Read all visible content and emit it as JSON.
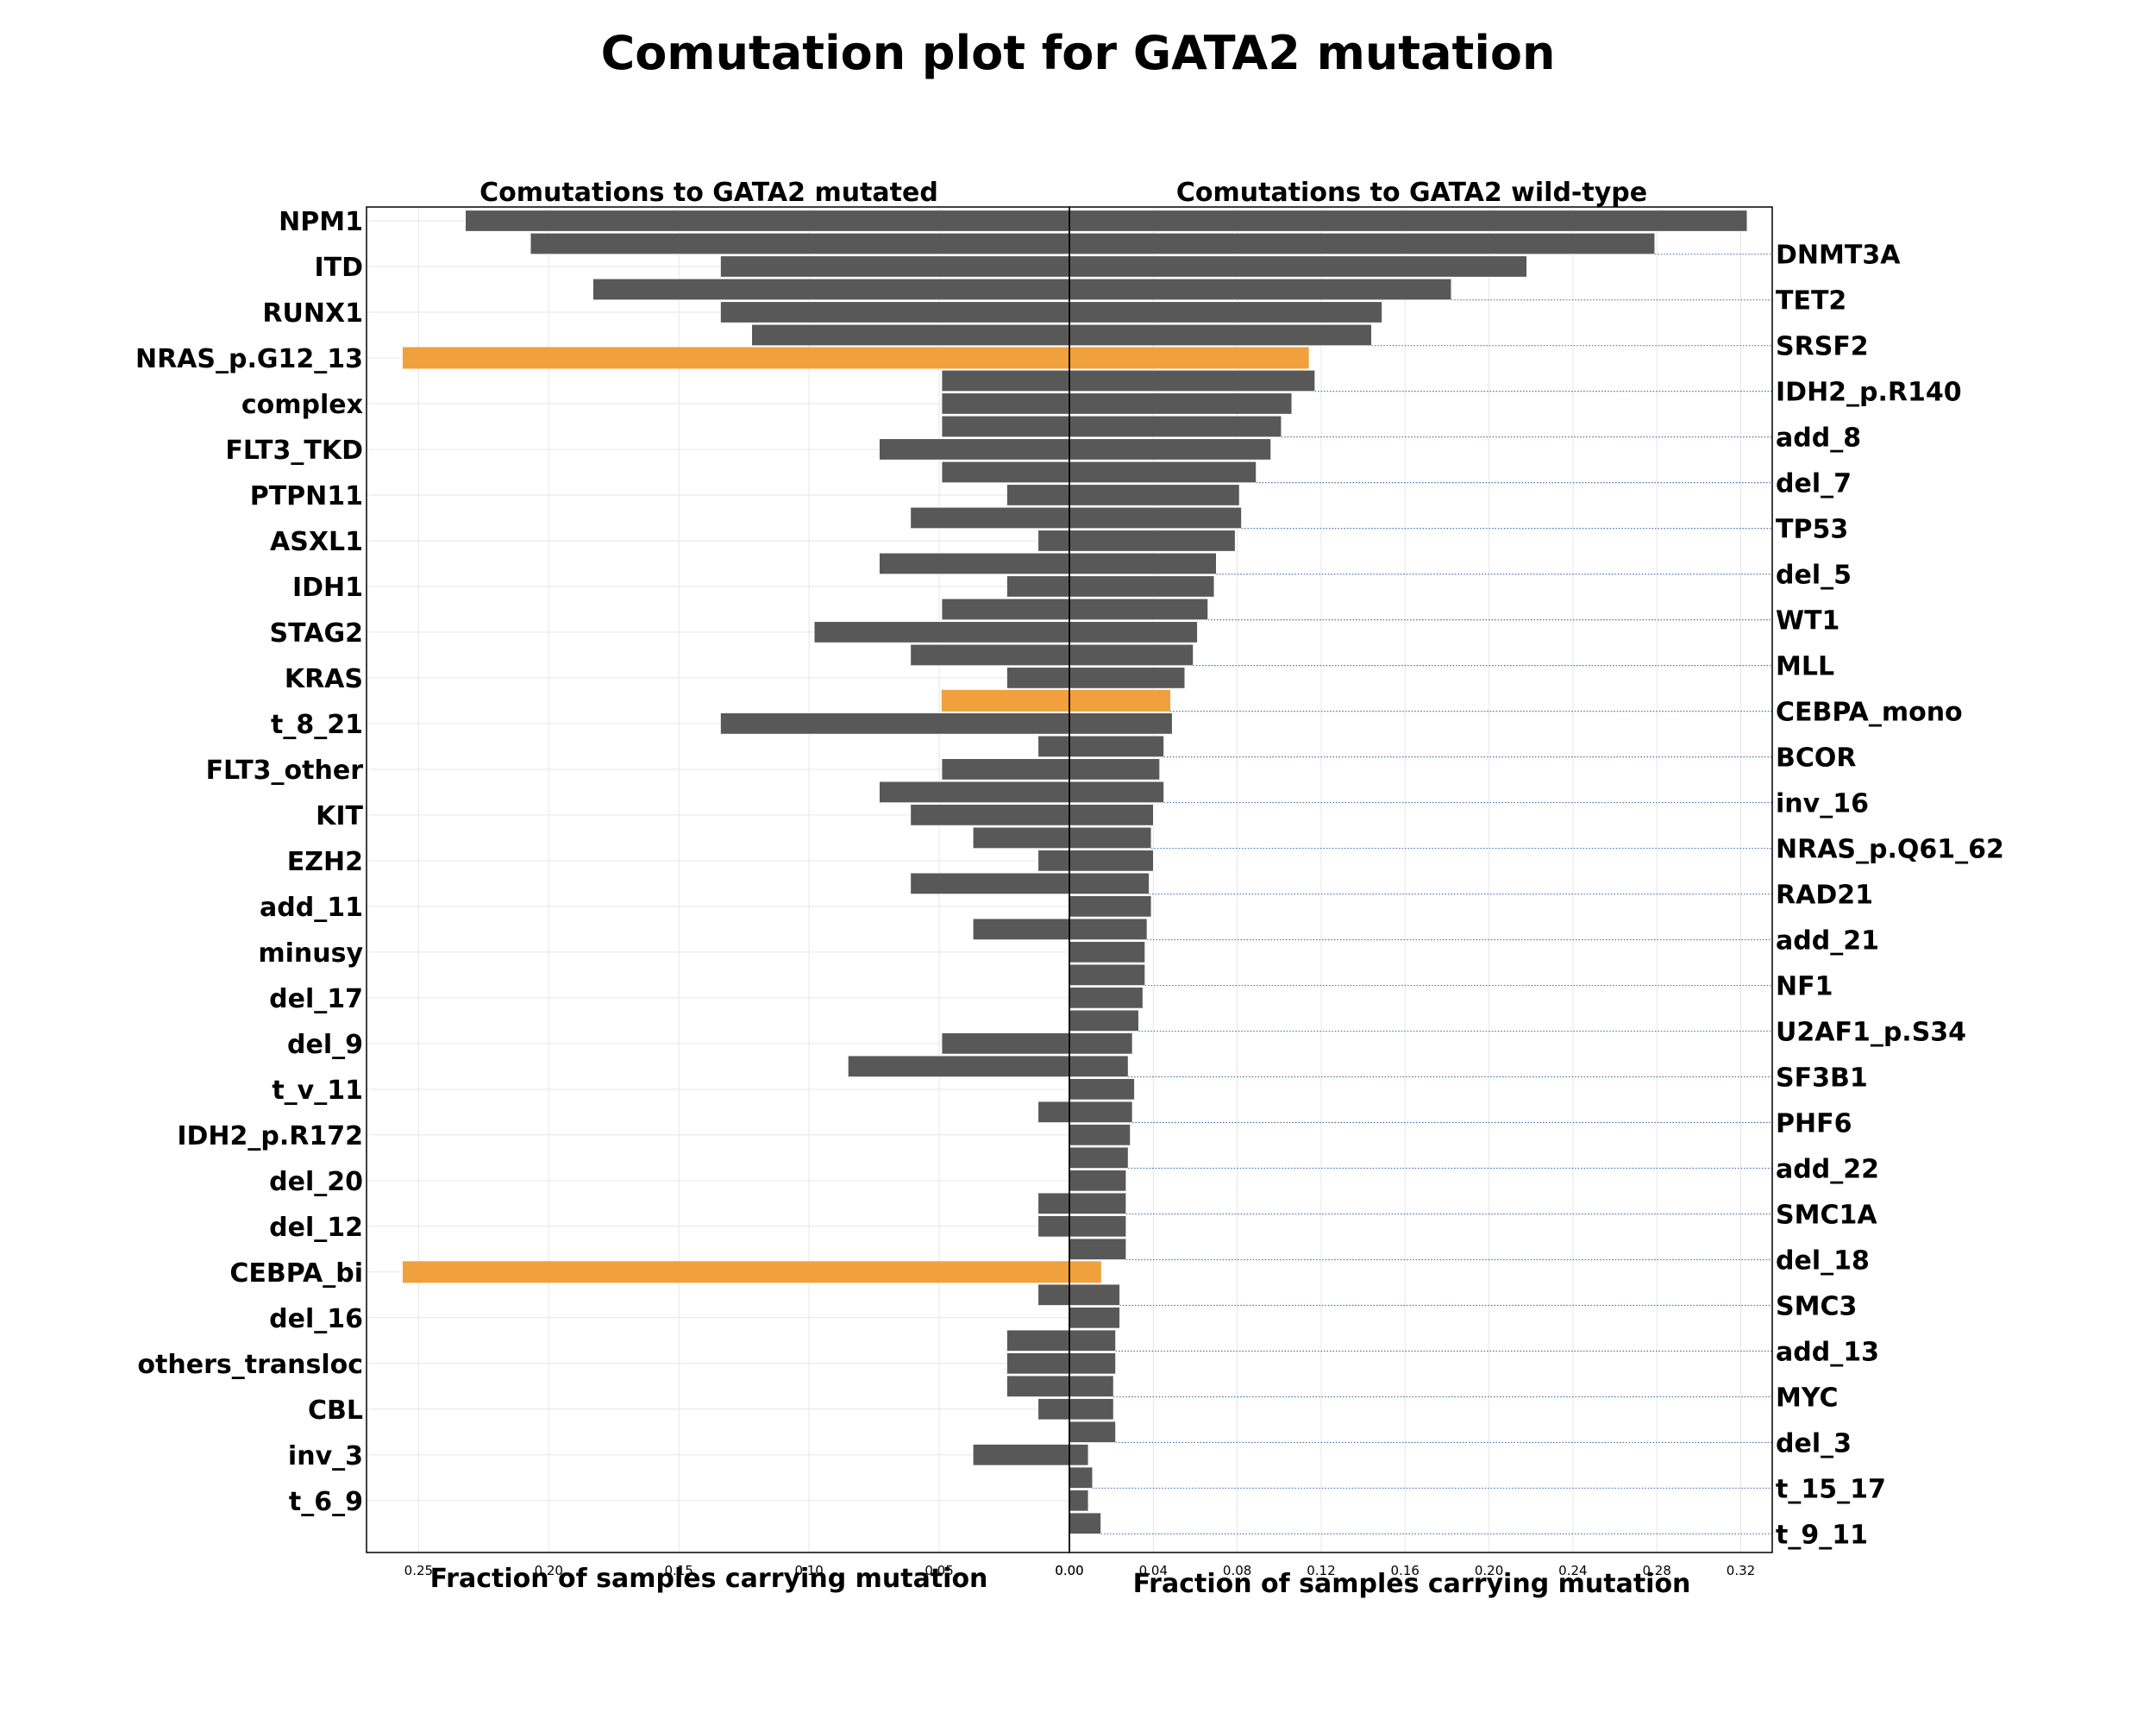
{
  "chart_data": {
    "type": "bar",
    "title": "Comutation plot for GATA2 mutation",
    "colors": {
      "default": "#585858",
      "highlight": "#f0a03c",
      "grid": "#e6e6e6",
      "connector": "#4a72b0"
    },
    "highlighted": [
      "NRAS_p.G12_13",
      "CEBPA_mono",
      "CEBPA_bi"
    ],
    "panels": [
      {
        "title": "Comutations to GATA2 mutated",
        "xlabel": "Fraction of samples carrying mutation",
        "xlim": [
          0.27,
          0
        ],
        "xticks": [
          "0.25",
          "0.20",
          "0.15",
          "0.10",
          "0.05",
          "0.00"
        ],
        "tick_values": [
          0.25,
          0.2,
          0.15,
          0.1,
          0.05,
          0.0
        ]
      },
      {
        "title": "Comutations to GATA2 wild-type",
        "xlabel": "Fraction of samples carrying mutation",
        "xlim": [
          0,
          0.335
        ],
        "xticks": [
          "0.00",
          "0.04",
          "0.08",
          "0.12",
          "0.16",
          "0.20",
          "0.24",
          "0.28",
          "0.32"
        ],
        "tick_values": [
          0,
          0.04,
          0.08,
          0.12,
          0.16,
          0.2,
          0.24,
          0.28,
          0.32
        ]
      }
    ],
    "categories": [
      "NPM1",
      "DNMT3A",
      "ITD",
      "TET2",
      "RUNX1",
      "SRSF2",
      "NRAS_p.G12_13",
      "IDH2_p.R140",
      "complex",
      "add_8",
      "FLT3_TKD",
      "del_7",
      "PTPN11",
      "TP53",
      "ASXL1",
      "del_5",
      "IDH1",
      "WT1",
      "STAG2",
      "MLL",
      "KRAS",
      "CEBPA_mono",
      "t_8_21",
      "BCOR",
      "FLT3_other",
      "inv_16",
      "KIT",
      "NRAS_p.Q61_62",
      "EZH2",
      "RAD21",
      "add_11",
      "add_21",
      "minusy",
      "NF1",
      "del_17",
      "U2AF1_p.S34",
      "del_9",
      "SF3B1",
      "t_v_11",
      "PHF6",
      "IDH2_p.R172",
      "add_22",
      "del_20",
      "SMC1A",
      "del_12",
      "del_18",
      "CEBPA_bi",
      "SMC3",
      "del_16",
      "add_13",
      "others_transloc",
      "MYC",
      "CBL",
      "del_3",
      "inv_3",
      "t_15_17",
      "t_6_9",
      "t_9_11"
    ],
    "left_labels": [
      "NPM1",
      "ITD",
      "RUNX1",
      "NRAS_p.G12_13",
      "complex",
      "FLT3_TKD",
      "PTPN11",
      "ASXL1",
      "IDH1",
      "STAG2",
      "KRAS",
      "t_8_21",
      "FLT3_other",
      "KIT",
      "EZH2",
      "add_11",
      "minusy",
      "del_17",
      "del_9",
      "t_v_11",
      "IDH2_p.R172",
      "del_20",
      "del_12",
      "CEBPA_bi",
      "del_16",
      "others_transloc",
      "CBL",
      "inv_3",
      "t_6_9"
    ],
    "right_labels": [
      "DNMT3A",
      "TET2",
      "SRSF2",
      "IDH2_p.R140",
      "add_8",
      "del_7",
      "TP53",
      "del_5",
      "WT1",
      "MLL",
      "CEBPA_mono",
      "BCOR",
      "inv_16",
      "NRAS_p.Q61_62",
      "RAD21",
      "add_21",
      "NF1",
      "U2AF1_p.S34",
      "SF3B1",
      "PHF6",
      "add_22",
      "SMC1A",
      "del_18",
      "SMC3",
      "add_13",
      "MYC",
      "del_3",
      "t_15_17",
      "t_9_11"
    ],
    "series": [
      {
        "name": "GATA2 mutated",
        "values": [
          0.232,
          0.207,
          0.134,
          0.183,
          0.134,
          0.122,
          0.256,
          0.049,
          0.049,
          0.049,
          0.073,
          0.049,
          0.024,
          0.061,
          0.012,
          0.073,
          0.024,
          0.049,
          0.098,
          0.061,
          0.024,
          0.049,
          0.134,
          0.012,
          0.049,
          0.073,
          0.061,
          0.037,
          0.012,
          0.061,
          0.0,
          0.037,
          0.0,
          0.0,
          0.0,
          0.0,
          0.049,
          0.085,
          0.0,
          0.012,
          0.0,
          0.0,
          0.0,
          0.012,
          0.012,
          0.0,
          0.256,
          0.012,
          0.0,
          0.024,
          0.024,
          0.024,
          0.012,
          0.0,
          0.037,
          0.0,
          0.0,
          0.0
        ]
      },
      {
        "name": "GATA2 wild-type",
        "values": [
          0.323,
          0.279,
          0.218,
          0.182,
          0.149,
          0.144,
          0.114,
          0.117,
          0.106,
          0.101,
          0.096,
          0.089,
          0.081,
          0.082,
          0.079,
          0.07,
          0.069,
          0.066,
          0.061,
          0.059,
          0.055,
          0.048,
          0.049,
          0.045,
          0.043,
          0.045,
          0.04,
          0.039,
          0.04,
          0.038,
          0.039,
          0.037,
          0.036,
          0.036,
          0.035,
          0.033,
          0.03,
          0.028,
          0.031,
          0.03,
          0.029,
          0.028,
          0.027,
          0.027,
          0.027,
          0.027,
          0.015,
          0.024,
          0.024,
          0.022,
          0.022,
          0.021,
          0.021,
          0.022,
          0.009,
          0.011,
          0.009,
          0.015
        ]
      }
    ]
  }
}
